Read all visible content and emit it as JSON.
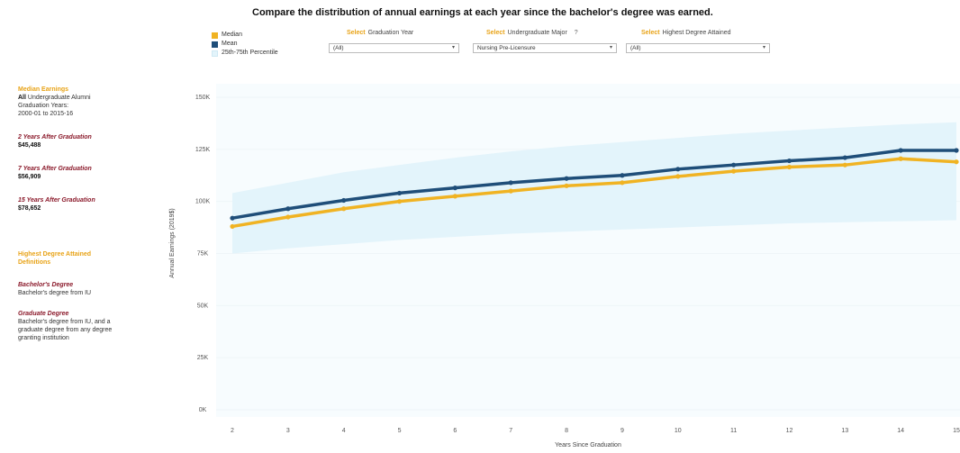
{
  "title": "Compare the distribution of annual earnings at each year since the bachelor's degree was earned.",
  "legend": [
    {
      "label": "Median",
      "color": "#f0b323"
    },
    {
      "label": "Mean",
      "color": "#1f4e79"
    },
    {
      "label": "25th-75th Percentile",
      "color": "#e3f4fb"
    }
  ],
  "filters": [
    {
      "select": "Select",
      "label": "Graduation Year",
      "value": "(All)",
      "help": ""
    },
    {
      "select": "Select",
      "label": "Undergraduate Major",
      "value": "Nursing Pre-Licensure",
      "help": "?"
    },
    {
      "select": "Select",
      "label": "Highest Degree Attained",
      "value": "(All)",
      "help": ""
    }
  ],
  "sidebar": {
    "heading": "Median Earnings",
    "subject_bold": "All",
    "subject_rest": " Undergraduate Alumni",
    "cohort_line1": "Graduation Years:",
    "cohort_line2": "2000-01 to 2015-16",
    "stats": [
      {
        "label": "2 Years After Graduation",
        "value": "$45,488"
      },
      {
        "label": "7 Years After Graduation",
        "value": "$56,909"
      },
      {
        "label": "15 Years After Graduation",
        "value": "$78,652"
      }
    ],
    "defs_heading_line1": "Highest Degree Attained",
    "defs_heading_line2": "Definitions",
    "defs": [
      {
        "term": "Bachelor's Degree",
        "text_lines": [
          "Bachelor's degree from IU"
        ]
      },
      {
        "term": "Graduate Degree",
        "text_lines": [
          "Bachelor's degree from IU, and a",
          "graduate degree from any degree",
          "granting institution"
        ]
      }
    ]
  },
  "chart_data": {
    "type": "line",
    "xlabel": "Years Since Graduation",
    "ylabel": "Annual Earnings (2019$)",
    "x": [
      2,
      3,
      4,
      5,
      6,
      7,
      8,
      9,
      10,
      11,
      12,
      13,
      14,
      15
    ],
    "ylim": [
      0,
      150000
    ],
    "yticks": [
      0,
      25000,
      50000,
      75000,
      100000,
      125000,
      150000
    ],
    "ytick_labels": [
      "0K",
      "25K",
      "50K",
      "75K",
      "100K",
      "125K",
      "150K"
    ],
    "series": [
      {
        "name": "Median",
        "color": "#f0b323",
        "values": [
          88000,
          92500,
          96500,
          100000,
          102500,
          105000,
          107500,
          109000,
          112000,
          114500,
          116500,
          117500,
          120500,
          119000
        ]
      },
      {
        "name": "Mean",
        "color": "#1f4e79",
        "values": [
          92000,
          96500,
          100500,
          104000,
          106500,
          109000,
          111000,
          112500,
          115500,
          117500,
          119500,
          121000,
          124500,
          124500
        ]
      }
    ],
    "band": {
      "name": "25th-75th Percentile",
      "color": "#e3f4fb",
      "low": [
        75000,
        77500,
        79500,
        81500,
        83000,
        84500,
        85500,
        86500,
        87500,
        88500,
        89500,
        90000,
        90500,
        91000
      ],
      "high": [
        104000,
        109000,
        114000,
        117500,
        121000,
        124000,
        126500,
        128500,
        130500,
        132500,
        134000,
        135500,
        137000,
        138000
      ]
    }
  }
}
